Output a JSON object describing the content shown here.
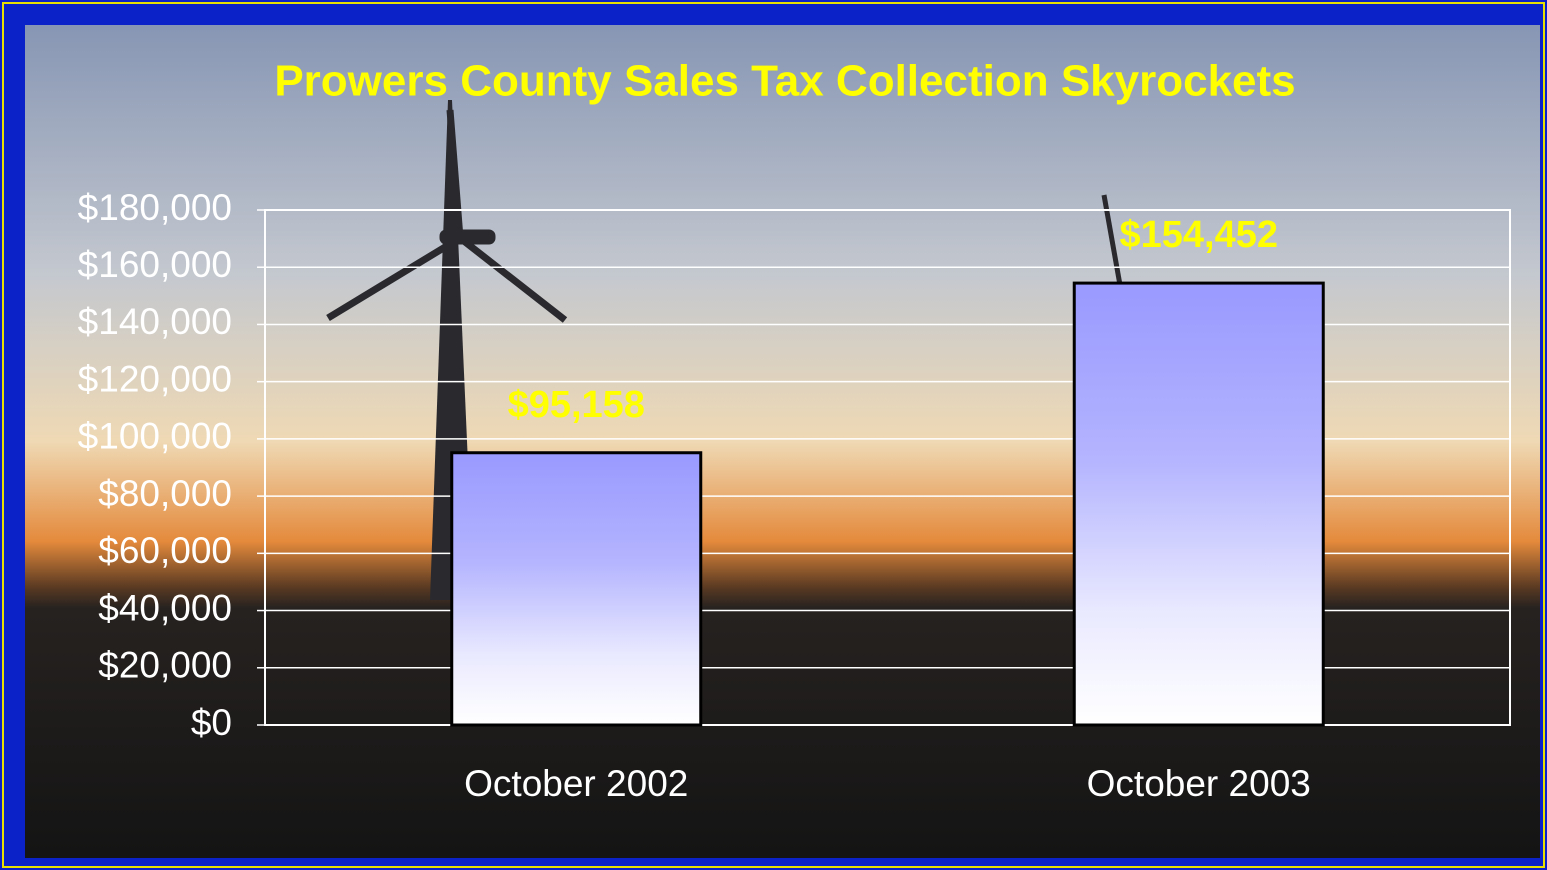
{
  "chart_data": {
    "type": "bar",
    "title": "Prowers County Sales Tax Collection Skyrockets",
    "categories": [
      "October 2002",
      "October 2003"
    ],
    "values": [
      95158,
      154452
    ],
    "value_labels": [
      "$95,158",
      "$154,452"
    ],
    "color": "#9999ff",
    "ylim": [
      0,
      180000
    ],
    "yticks": [
      {
        "value": 0,
        "label": "$0"
      },
      {
        "value": 20000,
        "label": "$20,000"
      },
      {
        "value": 40000,
        "label": "$40,000"
      },
      {
        "value": 60000,
        "label": "$60,000"
      },
      {
        "value": 80000,
        "label": "$80,000"
      },
      {
        "value": 100000,
        "label": "$100,000"
      },
      {
        "value": 120000,
        "label": "$120,000"
      },
      {
        "value": 140000,
        "label": "$140,000"
      },
      {
        "value": 160000,
        "label": "$160,000"
      },
      {
        "value": 180000,
        "label": "$180,000"
      }
    ],
    "grid": true
  }
}
